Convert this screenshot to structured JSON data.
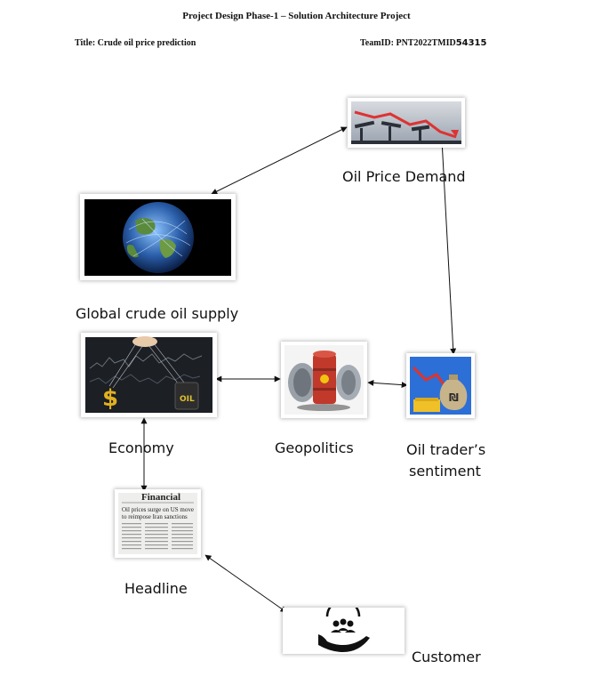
{
  "header": {
    "title": "Project Design Phase-1 – Solution Architecture Project",
    "project_title": "Title: Crude oil price prediction",
    "team_id_prefix": "TeamID: PNT2022TMID",
    "team_id_suffix": "54315"
  },
  "nodes": {
    "oil_price_demand": {
      "label": "Oil Price Demand"
    },
    "global_supply": {
      "label": "Global crude oil supply"
    },
    "economy": {
      "label": "Economy",
      "barrel_text": "OIL"
    },
    "geopolitics": {
      "label": "Geopolitics"
    },
    "trader_sentiment": {
      "label_line1": "Oil trader’s",
      "label_line2": "sentiment"
    },
    "headline": {
      "label": "Headline",
      "paper_masthead": "Financial",
      "paper_headline_1": "Oil prices surge on US move",
      "paper_headline_2": "to reimpose Iran sanctions"
    },
    "customer": {
      "label": "Customer"
    }
  },
  "colors": {
    "arrow": "#111111",
    "globe_blue": "#2a5da8",
    "oil_red": "#c0392b",
    "dollar_gold": "#e0b020"
  }
}
